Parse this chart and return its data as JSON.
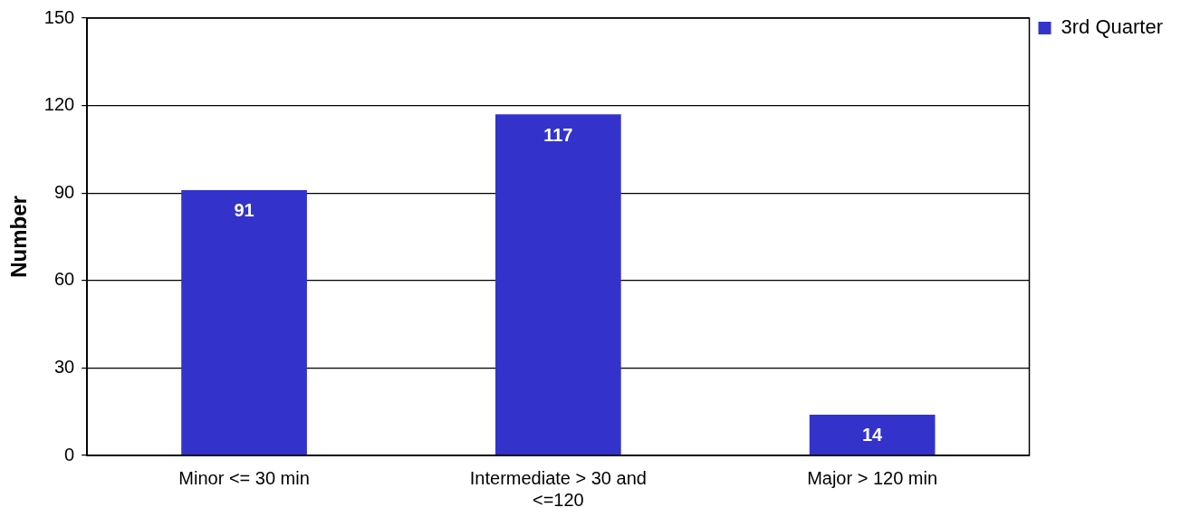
{
  "chart_data": {
    "type": "bar",
    "ylabel": "Number",
    "categories": [
      "Minor <= 30 min",
      "Intermediate > 30 and <=120",
      "Major > 120 min"
    ],
    "series": [
      {
        "name": "3rd Quarter",
        "color": "#3333cc",
        "values": [
          91,
          117,
          14
        ]
      }
    ],
    "ylim": [
      0,
      150
    ],
    "yticks": [
      0,
      30,
      60,
      90,
      120,
      150
    ],
    "grid": "y",
    "legend": "top right",
    "data_labels": true
  }
}
